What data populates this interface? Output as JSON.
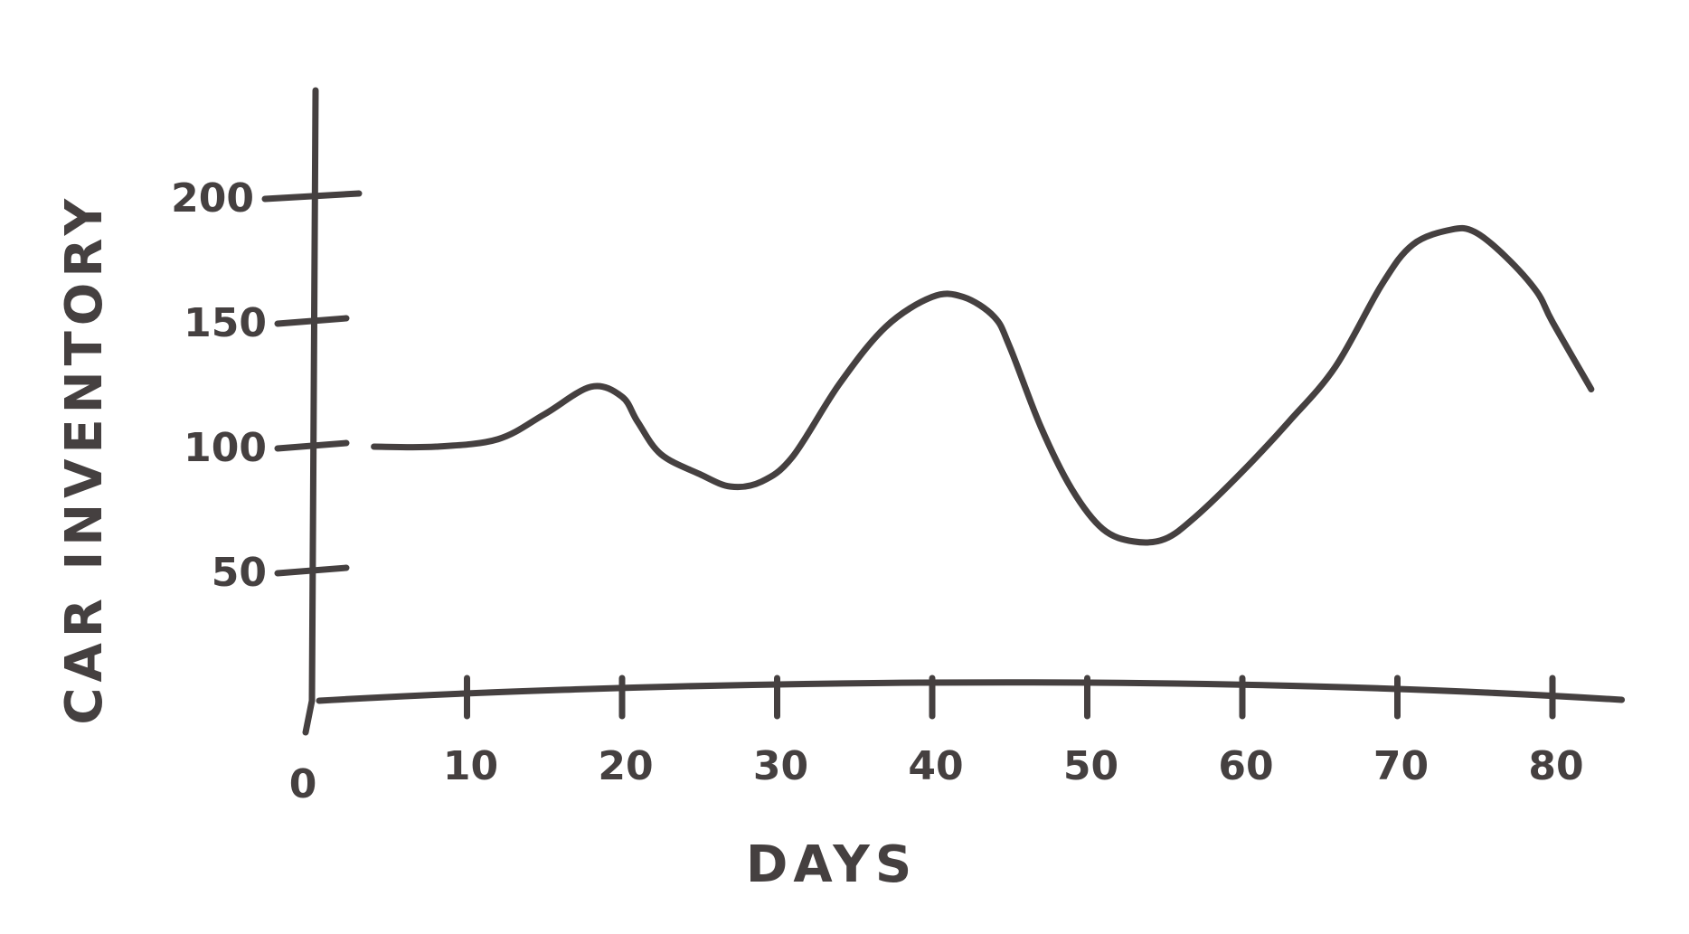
{
  "chart_data": {
    "type": "line",
    "xlabel": "DAYS",
    "ylabel": "CAR INVENTORY",
    "xlim": [
      0,
      84
    ],
    "ylim": [
      0,
      225
    ],
    "x_ticks": [
      "0",
      "10",
      "20",
      "30",
      "40",
      "50",
      "60",
      "70",
      "80"
    ],
    "y_ticks": [
      "50",
      "100",
      "150",
      "200"
    ],
    "grid": false,
    "legend": "none",
    "series": [
      {
        "color": "#454040",
        "x": [
          4,
          8,
          12,
          15,
          18,
          20,
          21,
          22.5,
          25,
          27,
          29,
          31,
          34,
          37,
          40,
          42,
          44,
          45,
          47,
          49,
          51,
          53,
          55,
          57,
          60,
          63,
          66,
          69,
          71,
          73.5,
          75,
          77,
          79,
          80,
          82.5
        ],
        "y": [
          100,
          100,
          103,
          113,
          124,
          120,
          110,
          97,
          89,
          84,
          86,
          96,
          125,
          148,
          160,
          160,
          152,
          140,
          108,
          83,
          67,
          62,
          63,
          72,
          90,
          110,
          132,
          165,
          181,
          187,
          186,
          176,
          162,
          150,
          123
        ]
      }
    ]
  }
}
